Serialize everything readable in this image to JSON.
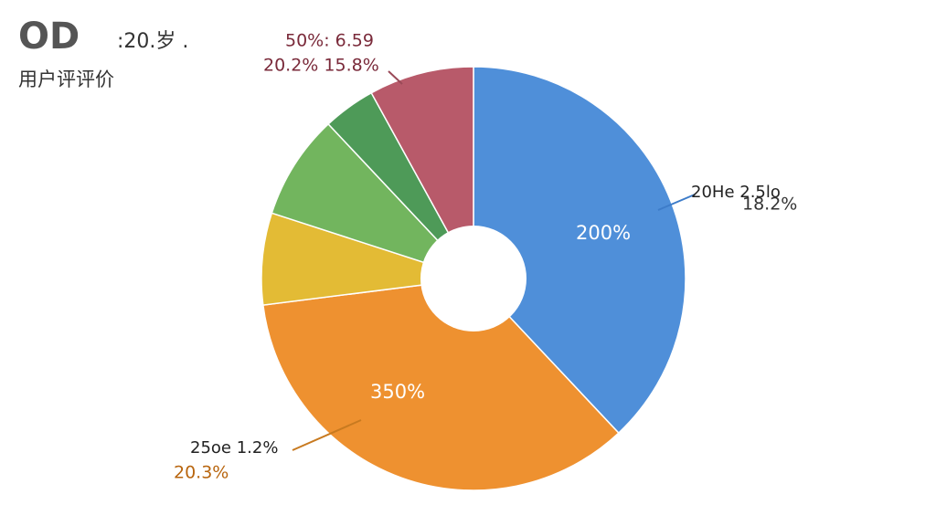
{
  "chart_data": {
    "type": "pie",
    "title": "OD",
    "subtitle": ":20.岁 .",
    "label": "用户评评价",
    "values": [
      38,
      35,
      7,
      8,
      4,
      8
    ],
    "colors": [
      "#4f8fd9",
      "#ee9130",
      "#e3bb35",
      "#72b55e",
      "#4e9a58",
      "#b85a6a"
    ],
    "hole": true,
    "annotations": [
      "50%: 6.59",
      "20.2% 15.8%",
      "20He 2.5lo",
      "18.2%",
      "200%",
      "350%",
      "25oe 1.2%",
      "20.3%"
    ]
  }
}
